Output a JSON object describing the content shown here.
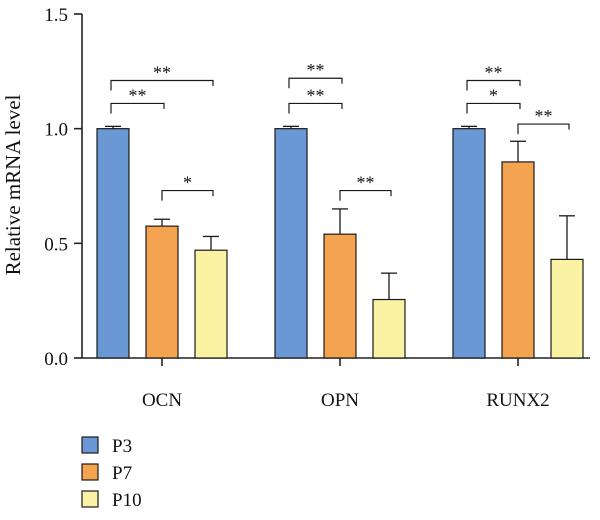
{
  "chart_data": {
    "type": "bar",
    "ylabel": "Relative mRNA level",
    "xlabel": "",
    "ylim": [
      0,
      1.5
    ],
    "yticks": [
      "0.0",
      "0.5",
      "1.0",
      "1.5"
    ],
    "categories": [
      "OCN",
      "OPN",
      "RUNX2"
    ],
    "series": [
      {
        "name": "P3",
        "color": "#6a98d4",
        "values": [
          1.0,
          1.0,
          1.0
        ],
        "errors": [
          0.01,
          0.01,
          0.01
        ]
      },
      {
        "name": "P7",
        "color": "#f4a350",
        "values": [
          0.575,
          0.54,
          0.855
        ],
        "errors": [
          0.03,
          0.11,
          0.09
        ]
      },
      {
        "name": "P10",
        "color": "#faf3a3",
        "values": [
          0.47,
          0.255,
          0.43
        ],
        "errors": [
          0.06,
          0.115,
          0.19
        ]
      }
    ],
    "significance": [
      {
        "category": 0,
        "from": 0,
        "to": 2,
        "label": "**",
        "level": 1.21
      },
      {
        "category": 0,
        "from": 0,
        "to": 1,
        "label": "**",
        "level": 1.11
      },
      {
        "category": 0,
        "from": 1,
        "to": 2,
        "label": "*",
        "level": 0.73
      },
      {
        "category": 1,
        "from": 0,
        "to": 1,
        "label": "**",
        "level": 1.22
      },
      {
        "category": 1,
        "from": 0,
        "to": 1,
        "label": "**",
        "level": 1.11
      },
      {
        "category": 1,
        "from": 1,
        "to": 2,
        "label": "**",
        "level": 0.73
      },
      {
        "category": 2,
        "from": 0,
        "to": 1,
        "label": "**",
        "level": 1.21
      },
      {
        "category": 2,
        "from": 0,
        "to": 1,
        "label": "*",
        "level": 1.11
      },
      {
        "category": 2,
        "from": 1,
        "to": 2,
        "label": "**",
        "level": 1.02
      }
    ],
    "legend_position": "bottom-left",
    "grid": false
  }
}
